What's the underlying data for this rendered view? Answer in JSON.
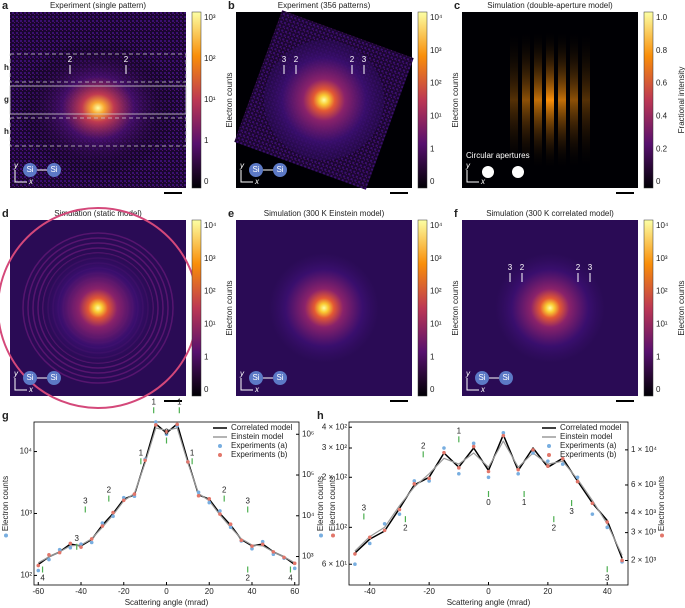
{
  "panels": [
    {
      "label": "a",
      "title": "Experiment (single pattern)",
      "colorbar_label": "Electron counts",
      "colorbar_ticks": [
        "10³",
        "10²",
        "10¹",
        "1",
        "0"
      ],
      "markers": [
        "2",
        "2"
      ],
      "regions": [
        "h",
        "g",
        "h"
      ],
      "atoms": [
        "Si",
        "Si"
      ],
      "axes": [
        "y",
        "x"
      ]
    },
    {
      "label": "b",
      "title": "Experiment (356 patterns)",
      "colorbar_label": "Electron counts",
      "colorbar_ticks": [
        "10⁴",
        "10³",
        "10²",
        "10¹",
        "1",
        "0"
      ],
      "markers": [
        "3",
        "2",
        "2",
        "3"
      ],
      "atoms": [
        "Si",
        "Si"
      ],
      "axes": [
        "y",
        "x"
      ]
    },
    {
      "label": "c",
      "title": "Simulation (double-aperture model)",
      "colorbar_label": "Fractional intensity",
      "colorbar_ticks": [
        "1.0",
        "0.8",
        "0.6",
        "0.4",
        "0.2",
        "0"
      ],
      "note": "Circular apertures",
      "axes": [
        "y",
        "x"
      ]
    },
    {
      "label": "d",
      "title": "Simulation (static model)",
      "colorbar_label": "Electron counts",
      "colorbar_ticks": [
        "10⁴",
        "10³",
        "10²",
        "10¹",
        "1",
        "0"
      ],
      "atoms": [
        "Si",
        "Si"
      ],
      "axes": [
        "y",
        "x"
      ]
    },
    {
      "label": "e",
      "title": "Simulation (300 K Einstein model)",
      "colorbar_label": "Electron counts",
      "colorbar_ticks": [
        "10⁴",
        "10³",
        "10²",
        "10¹",
        "1",
        "0"
      ],
      "atoms": [
        "Si",
        "Si"
      ],
      "axes": [
        "y",
        "x"
      ]
    },
    {
      "label": "f",
      "title": "Simulation (300 K correlated model)",
      "colorbar_label": "Electron counts",
      "colorbar_ticks": [
        "10⁴",
        "10³",
        "10²",
        "10¹",
        "1",
        "0"
      ],
      "markers": [
        "3",
        "2",
        "2",
        "3"
      ],
      "atoms": [
        "Si",
        "Si"
      ],
      "axes": [
        "y",
        "x"
      ]
    }
  ],
  "chart_data": [
    {
      "type": "line",
      "label": "g",
      "x_label": "Scattering angle (mrad)",
      "y_label": "Electron counts",
      "y2_label": "Electron counts",
      "log_y": true,
      "legend": "upper right",
      "x": [
        -60,
        -55,
        -50,
        -45,
        -40,
        -35,
        -30,
        -25,
        -20,
        -15,
        -10,
        -5,
        0,
        5,
        10,
        15,
        20,
        25,
        30,
        35,
        40,
        45,
        50,
        55,
        60
      ],
      "xlim": [
        -62,
        62
      ],
      "xticks": [
        -60,
        -40,
        -20,
        0,
        20,
        40,
        60
      ],
      "ylim": [
        70,
        30000
      ],
      "yticks": [
        {
          "value": 100,
          "label": "10²"
        },
        {
          "value": 1000,
          "label": "10³"
        },
        {
          "value": 10000,
          "label": "10⁴"
        }
      ],
      "y2lim": [
        200,
        2000000
      ],
      "y2ticks": [
        {
          "value": 1000,
          "label": "10³"
        },
        {
          "value": 10000,
          "label": "10⁴"
        },
        {
          "value": 100000,
          "label": "10⁵"
        },
        {
          "value": 1000000,
          "label": "10⁶"
        }
      ],
      "annotations": [
        "4",
        "3",
        "2",
        "1",
        "1",
        "0",
        "1",
        "1",
        "2",
        "3",
        "2",
        "3",
        "4"
      ],
      "series": [
        {
          "name": "Correlated model",
          "color": "#000000",
          "style": "line",
          "values": [
            150,
            200,
            240,
            320,
            300,
            380,
            650,
            1000,
            1700,
            2000,
            7000,
            28000,
            20000,
            28000,
            7000,
            2000,
            1700,
            1000,
            650,
            380,
            300,
            320,
            240,
            200,
            150
          ]
        },
        {
          "name": "Einstein model",
          "color": "#9a9a9a",
          "style": "line",
          "values": [
            160,
            200,
            240,
            300,
            310,
            390,
            600,
            950,
            1600,
            2100,
            6500,
            24000,
            22000,
            24000,
            6500,
            2100,
            1600,
            950,
            600,
            390,
            310,
            300,
            240,
            200,
            160
          ]
        },
        {
          "name": "Experiments (a)",
          "color": "#78aee0",
          "style": "dots",
          "values": [
            120,
            180,
            260,
            280,
            320,
            340,
            700,
            900,
            1800,
            1900,
            7500,
            30000,
            19000,
            26000,
            6800,
            2200,
            1500,
            1100,
            600,
            360,
            270,
            350,
            220,
            190,
            130
          ]
        },
        {
          "name": "Experiments (b)",
          "color": "#e2766a",
          "style": "dots",
          "axis": "y2",
          "values": [
            600,
            1100,
            1250,
            2100,
            1700,
            2700,
            5600,
            12000,
            24000,
            34000,
            230000,
            1700000,
            1150000,
            1750000,
            210000,
            31000,
            26000,
            11000,
            6200,
            2500,
            1800,
            2000,
            1300,
            950,
            680
          ]
        }
      ]
    },
    {
      "type": "line",
      "label": "h",
      "x_label": "Scattering angle (mrad)",
      "y_label": "Electron counts",
      "y2_label": "Electron counts",
      "log_y": true,
      "legend": "upper right",
      "x": [
        -45,
        -40,
        -35,
        -30,
        -25,
        -20,
        -15,
        -10,
        -5,
        0,
        5,
        10,
        15,
        20,
        25,
        30,
        35,
        40,
        45
      ],
      "xlim": [
        -47,
        47
      ],
      "xticks": [
        -40,
        -20,
        0,
        20,
        40
      ],
      "ylim": [
        45,
        430
      ],
      "yticks": [
        {
          "value": 60,
          "label": "6 × 10¹"
        },
        {
          "value": 100,
          "label": "10²"
        },
        {
          "value": 200,
          "label": "2 × 10²"
        },
        {
          "value": 300,
          "label": "3 × 10²"
        },
        {
          "value": 400,
          "label": "4 × 10²"
        }
      ],
      "y2lim": [
        1400,
        15000
      ],
      "y2ticks": [
        {
          "value": 2000,
          "label": "2 × 10³"
        },
        {
          "value": 3000,
          "label": "3 × 10³"
        },
        {
          "value": 4000,
          "label": "4 × 10³"
        },
        {
          "value": 6000,
          "label": "6 × 10³"
        },
        {
          "value": 10000,
          "label": "1 × 10⁴"
        }
      ],
      "annotations": [
        "3",
        "2",
        "2",
        "1",
        "0",
        "1",
        "2",
        "3",
        "3"
      ],
      "series": [
        {
          "name": "Correlated model",
          "color": "#000000",
          "style": "line",
          "values": [
            70,
            85,
            95,
            130,
            180,
            200,
            280,
            230,
            300,
            220,
            360,
            220,
            300,
            230,
            260,
            190,
            140,
            110,
            65
          ]
        },
        {
          "name": "Einstein model",
          "color": "#9a9a9a",
          "style": "line",
          "values": [
            72,
            88,
            100,
            135,
            175,
            210,
            260,
            240,
            280,
            230,
            330,
            230,
            280,
            240,
            250,
            195,
            145,
            105,
            68
          ]
        },
        {
          "name": "Experiments (a)",
          "color": "#78aee0",
          "style": "dots",
          "values": [
            60,
            80,
            105,
            120,
            190,
            190,
            300,
            210,
            320,
            200,
            370,
            210,
            280,
            250,
            240,
            200,
            120,
            100,
            62
          ]
        },
        {
          "name": "Experiments (b)",
          "color": "#e2766a",
          "style": "dots",
          "axis": "y2",
          "values": [
            2200,
            2800,
            3100,
            4200,
            6100,
            6600,
            9600,
            7700,
            10500,
            7300,
            12300,
            7500,
            10000,
            7900,
            8800,
            6300,
            4600,
            3500,
            2000
          ]
        }
      ]
    }
  ]
}
